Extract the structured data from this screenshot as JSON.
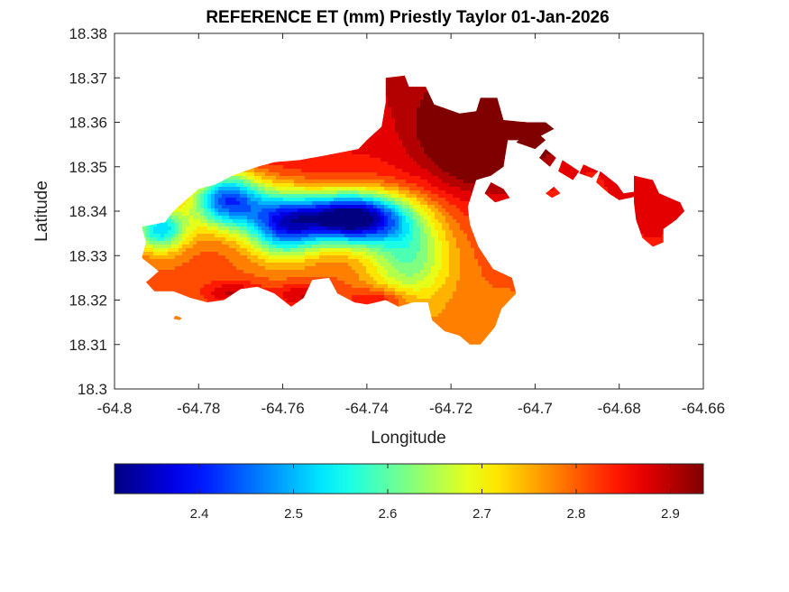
{
  "chart_data": {
    "type": "heatmap",
    "title": "REFERENCE ET (mm) Priestly Taylor 01-Jan-2026",
    "xlabel": "Longitude",
    "ylabel": "Latitude",
    "xlim": [
      -64.8,
      -64.66
    ],
    "ylim": [
      18.3,
      18.38
    ],
    "x_ticks": [
      -64.8,
      -64.78,
      -64.76,
      -64.74,
      -64.72,
      -64.7,
      -64.68,
      -64.66
    ],
    "x_tick_labels": [
      "-64.8",
      "-64.78",
      "-64.76",
      "-64.74",
      "-64.72",
      "-64.7",
      "-64.68",
      "-64.66"
    ],
    "y_ticks": [
      18.3,
      18.31,
      18.32,
      18.33,
      18.34,
      18.35,
      18.36,
      18.37,
      18.38
    ],
    "y_tick_labels": [
      "18.3",
      "18.31",
      "18.32",
      "18.33",
      "18.34",
      "18.35",
      "18.36",
      "18.37",
      "18.38"
    ],
    "grid": false,
    "colormap": "jet",
    "colorbar": {
      "orientation": "horizontal",
      "location": "bottom",
      "range": [
        2.31,
        2.935
      ],
      "ticks": [
        2.4,
        2.5,
        2.6,
        2.7,
        2.8,
        2.9
      ],
      "tick_labels": [
        "2.4",
        "2.5",
        "2.6",
        "2.7",
        "2.8",
        "2.9"
      ]
    },
    "level_colors": {
      "2.35": "#000d8f",
      "2.42": "#0033ff",
      "2.50": "#00a6ff",
      "2.56": "#19f0e6",
      "2.63": "#8cff73",
      "2.70": "#ffff00",
      "2.76": "#ffad00",
      "2.82": "#ff5500",
      "2.88": "#e60000",
      "2.93": "#8a0000"
    },
    "field": {
      "landmask_polygon": [
        [
          -64.7935,
          18.3365
        ],
        [
          -64.788,
          18.3375
        ],
        [
          -64.786,
          18.34
        ],
        [
          -64.78,
          18.345
        ],
        [
          -64.776,
          18.346
        ],
        [
          -64.772,
          18.348
        ],
        [
          -64.766,
          18.35
        ],
        [
          -64.762,
          18.351
        ],
        [
          -64.756,
          18.3515
        ],
        [
          -64.75,
          18.3525
        ],
        [
          -64.742,
          18.354
        ],
        [
          -64.74,
          18.356
        ],
        [
          -64.7365,
          18.359
        ],
        [
          -64.7355,
          18.3645
        ],
        [
          -64.7355,
          18.37
        ],
        [
          -64.731,
          18.3705
        ],
        [
          -64.73,
          18.368
        ],
        [
          -64.726,
          18.368
        ],
        [
          -64.724,
          18.364
        ],
        [
          -64.718,
          18.362
        ],
        [
          -64.714,
          18.3625
        ],
        [
          -64.713,
          18.3655
        ],
        [
          -64.709,
          18.3655
        ],
        [
          -64.7075,
          18.3605
        ],
        [
          -64.702,
          18.36
        ],
        [
          -64.6975,
          18.36
        ],
        [
          -64.6955,
          18.3585
        ],
        [
          -64.6985,
          18.357
        ],
        [
          -64.7025,
          18.356
        ],
        [
          -64.7065,
          18.356
        ],
        [
          -64.7075,
          18.35
        ],
        [
          -64.7105,
          18.348
        ],
        [
          -64.714,
          18.347
        ],
        [
          -64.716,
          18.341
        ],
        [
          -64.7155,
          18.337
        ],
        [
          -64.7135,
          18.332
        ],
        [
          -64.71,
          18.327
        ],
        [
          -64.7055,
          18.325
        ],
        [
          -64.7045,
          18.3215
        ],
        [
          -64.708,
          18.318
        ],
        [
          -64.7095,
          18.314
        ],
        [
          -64.713,
          18.31
        ],
        [
          -64.7155,
          18.31
        ],
        [
          -64.718,
          18.312
        ],
        [
          -64.7215,
          18.313
        ],
        [
          -64.7245,
          18.3155
        ],
        [
          -64.7255,
          18.3195
        ],
        [
          -64.729,
          18.3195
        ],
        [
          -64.7325,
          18.3185
        ],
        [
          -64.7355,
          18.32
        ],
        [
          -64.74,
          18.319
        ],
        [
          -64.743,
          18.3195
        ],
        [
          -64.747,
          18.3215
        ],
        [
          -64.749,
          18.325
        ],
        [
          -64.753,
          18.3245
        ],
        [
          -64.755,
          18.3205
        ],
        [
          -64.758,
          18.3185
        ],
        [
          -64.762,
          18.3215
        ],
        [
          -64.766,
          18.323
        ],
        [
          -64.77,
          18.3225
        ],
        [
          -64.774,
          18.32
        ],
        [
          -64.778,
          18.3195
        ],
        [
          -64.782,
          18.3205
        ],
        [
          -64.786,
          18.322
        ],
        [
          -64.7905,
          18.322
        ],
        [
          -64.7925,
          18.324
        ],
        [
          -64.7895,
          18.3265
        ],
        [
          -64.7935,
          18.3295
        ],
        [
          -64.7925,
          18.333
        ]
      ],
      "islands": [
        [
          [
            -64.7005,
            18.3585
          ],
          [
            -64.7045,
            18.3555
          ],
          [
            -64.7,
            18.354
          ],
          [
            -64.6975,
            18.356
          ]
        ],
        [
          [
            -64.6975,
            18.354
          ],
          [
            -64.695,
            18.352
          ],
          [
            -64.6965,
            18.35
          ],
          [
            -64.699,
            18.352
          ]
        ],
        [
          [
            -64.7105,
            18.3465
          ],
          [
            -64.7075,
            18.345
          ],
          [
            -64.706,
            18.343
          ],
          [
            -64.7095,
            18.342
          ],
          [
            -64.712,
            18.344
          ]
        ],
        [
          [
            -64.6935,
            18.3515
          ],
          [
            -64.6895,
            18.349
          ],
          [
            -64.691,
            18.347
          ],
          [
            -64.6945,
            18.349
          ]
        ],
        [
          [
            -64.6955,
            18.3455
          ],
          [
            -64.694,
            18.344
          ],
          [
            -64.696,
            18.343
          ],
          [
            -64.6975,
            18.344
          ]
        ],
        [
          [
            -64.6885,
            18.3505
          ],
          [
            -64.685,
            18.349
          ],
          [
            -64.6865,
            18.3475
          ],
          [
            -64.6895,
            18.3485
          ]
        ],
        [
          [
            -64.6845,
            18.349
          ],
          [
            -64.6805,
            18.346
          ],
          [
            -64.679,
            18.344
          ],
          [
            -64.6755,
            18.3445
          ],
          [
            -64.675,
            18.3435
          ],
          [
            -64.68,
            18.3425
          ],
          [
            -64.6825,
            18.344
          ],
          [
            -64.6855,
            18.3465
          ]
        ],
        [
          [
            -64.6765,
            18.348
          ],
          [
            -64.672,
            18.347
          ],
          [
            -64.6705,
            18.344
          ],
          [
            -64.6655,
            18.342
          ],
          [
            -64.6645,
            18.34
          ],
          [
            -64.6665,
            18.338
          ],
          [
            -64.6695,
            18.336
          ],
          [
            -64.6695,
            18.333
          ],
          [
            -64.672,
            18.332
          ],
          [
            -64.6745,
            18.334
          ],
          [
            -64.676,
            18.338
          ],
          [
            -64.6765,
            18.342
          ]
        ],
        [
          [
            -64.7855,
            18.3165
          ],
          [
            -64.784,
            18.316
          ],
          [
            -64.7845,
            18.3155
          ],
          [
            -64.786,
            18.3158
          ]
        ]
      ],
      "blobs": [
        {
          "lon": -64.744,
          "lat": 18.3385,
          "amp": -0.56,
          "rx": 0.009,
          "ry": 0.004
        },
        {
          "lon": -64.773,
          "lat": 18.3425,
          "amp": -0.4,
          "rx": 0.006,
          "ry": 0.0045
        },
        {
          "lon": -64.789,
          "lat": 18.336,
          "amp": -0.3,
          "rx": 0.0045,
          "ry": 0.0035
        },
        {
          "lon": -64.76,
          "lat": 18.337,
          "amp": -0.35,
          "rx": 0.006,
          "ry": 0.005
        },
        {
          "lon": -64.73,
          "lat": 18.33,
          "amp": -0.2,
          "rx": 0.007,
          "ry": 0.007
        },
        {
          "lon": -64.712,
          "lat": 18.357,
          "amp": 0.2,
          "rx": 0.01,
          "ry": 0.008
        },
        {
          "lon": -64.7,
          "lat": 18.359,
          "amp": 0.12,
          "rx": 0.006,
          "ry": 0.003
        },
        {
          "lon": -64.672,
          "lat": 18.34,
          "amp": 0.05,
          "rx": 0.008,
          "ry": 0.008
        },
        {
          "lon": -64.772,
          "lat": 18.3215,
          "amp": 0.1,
          "rx": 0.005,
          "ry": 0.002
        },
        {
          "lon": -64.755,
          "lat": 18.321,
          "amp": 0.1,
          "rx": 0.005,
          "ry": 0.002
        },
        {
          "lon": -64.737,
          "lat": 18.32,
          "amp": 0.1,
          "rx": 0.005,
          "ry": 0.002
        }
      ],
      "base_value": 2.82,
      "gradient_north": 0.06
    }
  }
}
